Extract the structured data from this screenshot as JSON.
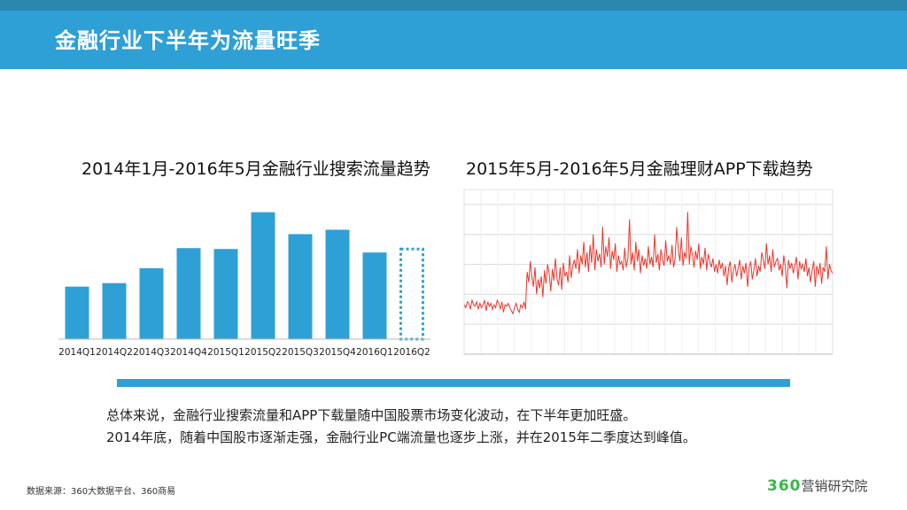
{
  "header": {
    "title": "金融行业下半年为流量旺季"
  },
  "colors": {
    "header": "#2EA0D6",
    "bar": "#2EA0D6",
    "line": "#E8392F",
    "logo_green": "#3bb54a"
  },
  "chart_data": [
    {
      "type": "bar",
      "title": "2014年1月-2016年5月金融行业搜索流量趋势",
      "categories": [
        "2014Q1",
        "2014Q2",
        "2014Q3",
        "2014Q4",
        "2015Q1",
        "2015Q2",
        "2015Q3",
        "2015Q4",
        "2016Q1",
        "2016Q2"
      ],
      "values": [
        60,
        64,
        81,
        104,
        103,
        145,
        120,
        125,
        99,
        103
      ],
      "projected": [
        false,
        false,
        false,
        false,
        false,
        false,
        false,
        false,
        false,
        true
      ],
      "ylim": [
        0,
        170
      ],
      "grid": false,
      "legend": "none"
    },
    {
      "type": "line",
      "title": "2015年5月-2016年5月金融理财APP下载趋势",
      "series": [
        {
          "values": [
            33,
            31,
            35,
            34,
            30,
            36,
            33,
            32,
            35,
            30,
            34,
            31,
            33,
            36,
            29,
            35,
            32,
            34,
            30,
            33,
            31,
            36,
            34,
            30,
            35,
            28,
            33,
            32,
            34,
            31,
            29,
            27,
            31,
            34,
            30,
            28,
            33,
            31,
            35,
            30,
            55,
            48,
            62,
            52,
            45,
            58,
            40,
            50,
            44,
            52,
            38,
            56,
            47,
            60,
            54,
            42,
            57,
            49,
            64,
            50,
            46,
            58,
            43,
            61,
            52,
            55,
            48,
            66,
            51,
            59,
            63,
            57,
            70,
            54,
            66,
            60,
            75,
            58,
            68,
            55,
            73,
            61,
            80,
            56,
            70,
            62,
            67,
            58,
            85,
            60,
            72,
            65,
            78,
            57,
            69,
            63,
            74,
            55,
            66,
            60,
            62,
            56,
            71,
            58,
            64,
            90,
            60,
            68,
            56,
            75,
            62,
            70,
            54,
            66,
            59,
            64,
            57,
            72,
            60,
            65,
            58,
            80,
            61,
            67,
            56,
            70,
            63,
            59,
            76,
            62,
            66,
            60,
            73,
            58,
            64,
            85,
            70,
            62,
            78,
            59,
            68,
            64,
            95,
            60,
            72,
            66,
            58,
            69,
            63,
            74,
            57,
            65,
            60,
            71,
            56,
            67,
            62,
            58,
            64,
            55,
            60,
            54,
            63,
            57,
            61,
            52,
            59,
            46,
            58,
            62,
            48,
            56,
            60,
            52,
            57,
            63,
            50,
            59,
            54,
            61,
            45,
            58,
            62,
            50,
            56,
            64,
            52,
            59,
            55,
            68,
            63,
            57,
            74,
            60,
            66,
            55,
            70,
            58,
            62,
            64,
            56,
            60,
            52,
            66,
            58,
            44,
            63,
            57,
            61,
            54,
            59,
            65,
            50,
            62,
            57,
            60,
            55,
            64,
            52,
            58,
            48,
            56,
            62,
            45,
            59,
            53,
            61,
            47,
            58,
            55,
            72,
            50,
            60,
            56,
            54
          ]
        }
      ],
      "ylim": [
        0,
        110
      ],
      "grid": true,
      "legend": "none"
    }
  ],
  "summary": {
    "line1": "总体来说，金融行业搜索流量和APP下载量随中国股票市场变化波动，在下半年更加旺盛。",
    "line2": "2014年底，随着中国股市逐渐走强，金融行业PC端流量也逐步上涨，并在2015年二季度达到峰值。"
  },
  "footer": {
    "source": "数据来源：360大数据平台、360商易",
    "logo_number": "360",
    "logo_text": "营销研究院"
  }
}
